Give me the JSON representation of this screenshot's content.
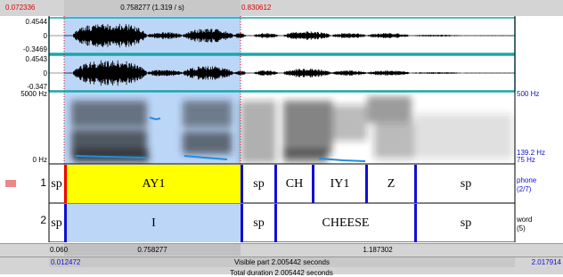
{
  "top_bar": {
    "start": "0.072336",
    "selection": "0.758277 (1.319 / s)",
    "end": "0.830612"
  },
  "channel_1": {
    "max": "0.4544",
    "zero": "0",
    "min": "-0.3469"
  },
  "channel_2": {
    "max": "0.4543",
    "zero": "0",
    "min": "-0.347"
  },
  "spectrogram": {
    "top": "5000 Hz",
    "bottom": "0 Hz",
    "pitch_top": "500 Hz",
    "pitch_value": "139.2 Hz",
    "pitch_bottom": "75 Hz"
  },
  "tiers": [
    {
      "number": "1",
      "name": "phone",
      "count": "(2/7)",
      "intervals": [
        "sp",
        "AY1",
        "sp",
        "CH",
        "IY1",
        "Z",
        "sp"
      ]
    },
    {
      "number": "2",
      "name": "word",
      "count": "(5)",
      "intervals": [
        "sp",
        "I",
        "sp",
        "CHEESE",
        "sp"
      ]
    }
  ],
  "bottom_bar": {
    "left": "0.060",
    "selection": "0.758277",
    "right": "1.187302"
  },
  "window_bar": {
    "start": "0.012472",
    "visible": "Visible part 2.005442 seconds",
    "end": "2.017914"
  },
  "total": "Total duration 2.005442 seconds"
}
